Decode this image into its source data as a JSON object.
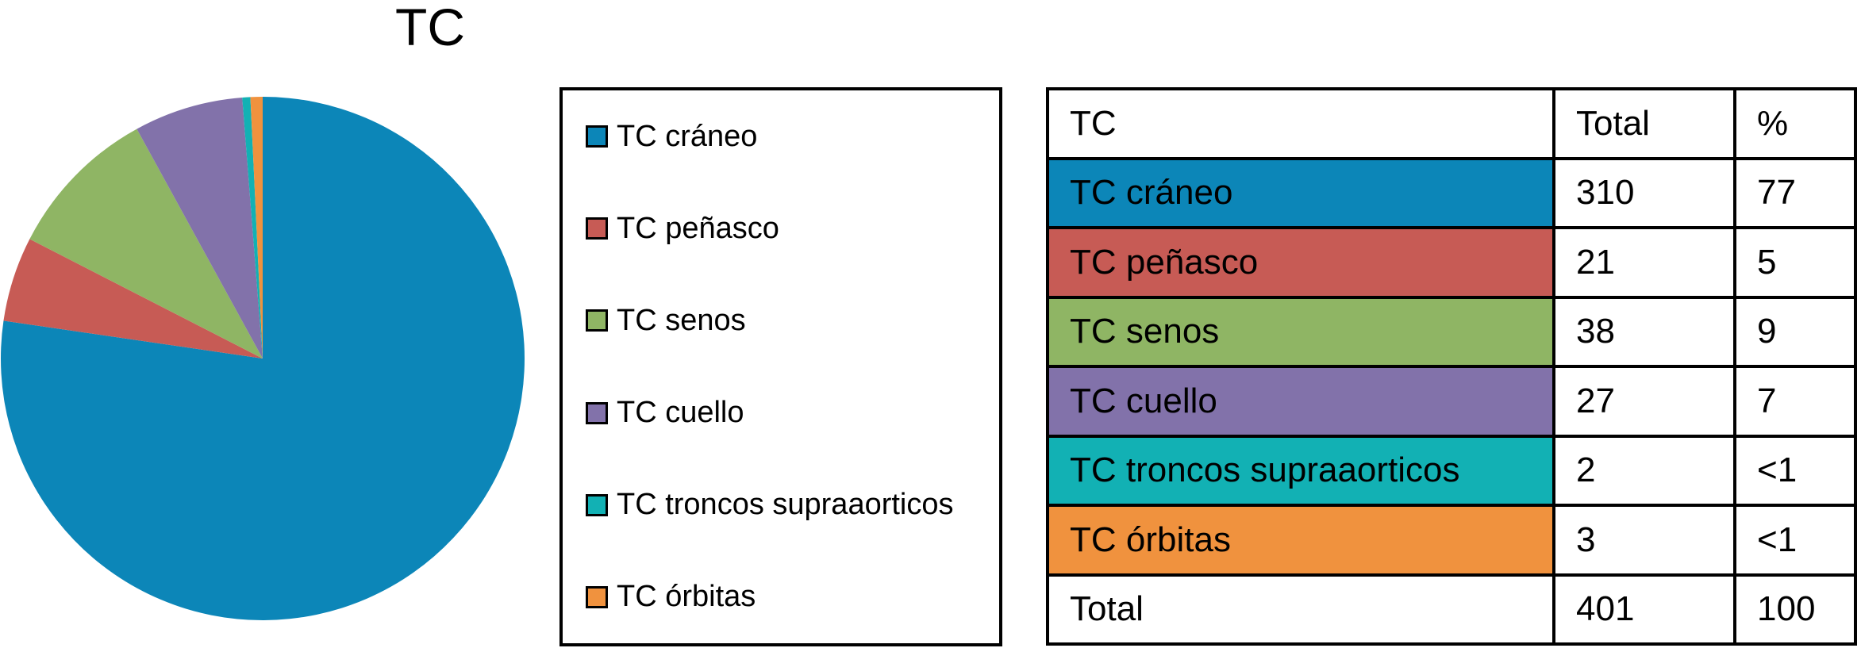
{
  "title": "TC",
  "colors": {
    "tc_craneo": "#0C86B8",
    "tc_penasco": "#C75B55",
    "tc_senos": "#8FB564",
    "tc_cuello": "#8272AA",
    "tc_troncos": "#12B1B4",
    "tc_orbitas": "#F0923E",
    "border": "#000000",
    "background": "#FFFFFF"
  },
  "chart_data": {
    "type": "pie",
    "title": "TC",
    "categories": [
      "TC cráneo",
      "TC peñasco",
      "TC senos",
      "TC cuello",
      "TC troncos supraaorticos",
      "TC órbitas"
    ],
    "values": [
      310,
      21,
      38,
      27,
      2,
      3
    ],
    "percent_labels": [
      "77",
      "5",
      "9",
      "7",
      "<1",
      "<1"
    ],
    "colors": [
      "#0C86B8",
      "#C75B55",
      "#8FB564",
      "#8272AA",
      "#12B1B4",
      "#F0923E"
    ],
    "total_value": 401,
    "total_percent": "100",
    "start_angle_deg": 0,
    "direction": "clockwise",
    "legend_position": "right"
  },
  "legend": {
    "items": [
      {
        "label": "TC cráneo",
        "color": "#0C86B8"
      },
      {
        "label": "TC peñasco",
        "color": "#C75B55"
      },
      {
        "label": "TC senos",
        "color": "#8FB564"
      },
      {
        "label": "TC cuello",
        "color": "#8272AA"
      },
      {
        "label": "TC troncos supraaorticos",
        "color": "#12B1B4"
      },
      {
        "label": "TC órbitas",
        "color": "#F0923E"
      }
    ]
  },
  "table": {
    "headers": [
      "TC",
      "Total",
      "%"
    ],
    "rows": [
      {
        "label": "TC cráneo",
        "total": "310",
        "percent": "77",
        "color": "#0C86B8"
      },
      {
        "label": "TC peñasco",
        "total": "21",
        "percent": "5",
        "color": "#C75B55"
      },
      {
        "label": "TC senos",
        "total": "38",
        "percent": "9",
        "color": "#8FB564"
      },
      {
        "label": "TC cuello",
        "total": "27",
        "percent": "7",
        "color": "#8272AA"
      },
      {
        "label": "TC troncos supraaorticos",
        "total": "2",
        "percent": "<1",
        "color": "#12B1B4"
      },
      {
        "label": "TC órbitas",
        "total": "3",
        "percent": "<1",
        "color": "#F0923E"
      }
    ],
    "footer": {
      "label": "Total",
      "total": "401",
      "percent": "100"
    }
  }
}
